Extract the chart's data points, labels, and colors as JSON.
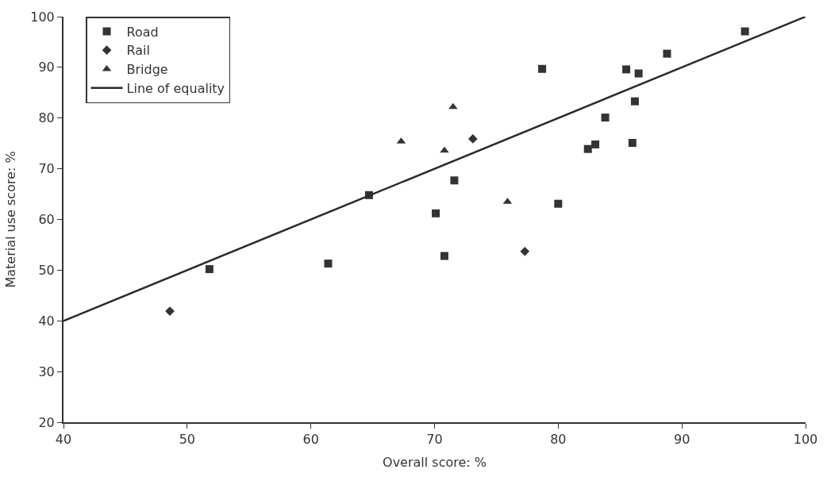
{
  "chart_data": {
    "type": "scatter",
    "xlabel": "Overall score: %",
    "ylabel": "Material use score: %",
    "xlim": [
      40,
      100
    ],
    "xticks": [
      40,
      50,
      60,
      70,
      80,
      90,
      100
    ],
    "ylim": [
      20,
      100
    ],
    "yticks": [
      20,
      30,
      40,
      50,
      60,
      70,
      80,
      90,
      100
    ],
    "legend": "top left",
    "series": [
      {
        "name": "Road",
        "color": "#333333",
        "marker": "square",
        "x": [
          51.8,
          61.4,
          64.7,
          70.1,
          70.8,
          71.6,
          78.7,
          80.0,
          82.4,
          83.0,
          83.8,
          85.5,
          86.0,
          86.2,
          86.5,
          88.8,
          95.1
        ],
        "values": [
          50.2,
          51.3,
          64.8,
          61.2,
          52.8,
          67.7,
          89.7,
          63.1,
          73.9,
          74.8,
          80.1,
          89.6,
          75.1,
          83.3,
          88.8,
          92.7,
          97.1
        ]
      },
      {
        "name": "Rail",
        "color": "#333333",
        "marker": "diamond",
        "x": [
          48.6,
          73.1,
          77.3
        ],
        "values": [
          41.9,
          75.9,
          53.7
        ]
      },
      {
        "name": "Bridge",
        "color": "#333333",
        "marker": "triangle",
        "x": [
          67.3,
          70.8,
          71.5,
          75.9
        ],
        "values": [
          75.4,
          73.6,
          82.2,
          63.5
        ]
      },
      {
        "name": "Line of equality",
        "type": "line",
        "color": "#2b2b2b",
        "line_style": "solid",
        "x": [
          40,
          100
        ],
        "values": [
          40,
          100
        ]
      }
    ]
  }
}
